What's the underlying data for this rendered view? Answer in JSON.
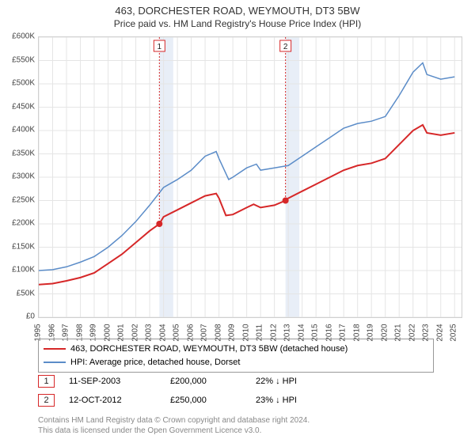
{
  "title": "463, DORCHESTER ROAD, WEYMOUTH, DT3 5BW",
  "subtitle": "Price paid vs. HM Land Registry's House Price Index (HPI)",
  "chart": {
    "type": "line",
    "background_color": "#ffffff",
    "grid_color": "#e5e5e5",
    "shade_color": "#e8eef7",
    "border_color": "#d0d0d0",
    "x_years": [
      1995,
      1996,
      1997,
      1998,
      1999,
      2000,
      2001,
      2002,
      2003,
      2004,
      2005,
      2006,
      2007,
      2008,
      2009,
      2010,
      2011,
      2012,
      2013,
      2014,
      2015,
      2016,
      2017,
      2018,
      2019,
      2020,
      2021,
      2022,
      2023,
      2024,
      2025
    ],
    "xlim": [
      1995,
      2025.5
    ],
    "ylim": [
      0,
      600000
    ],
    "ytick_step": 50000,
    "ytick_labels": [
      "£0",
      "£50K",
      "£100K",
      "£150K",
      "£200K",
      "£250K",
      "£300K",
      "£350K",
      "£400K",
      "£450K",
      "£500K",
      "£550K",
      "£600K"
    ],
    "series": [
      {
        "name": "463, DORCHESTER ROAD, WEYMOUTH, DT3 5BW (detached house)",
        "color": "#d62728",
        "width": 2,
        "points": [
          [
            1995,
            70000
          ],
          [
            1996,
            72000
          ],
          [
            1997,
            78000
          ],
          [
            1998,
            85000
          ],
          [
            1999,
            95000
          ],
          [
            2000,
            115000
          ],
          [
            2001,
            135000
          ],
          [
            2002,
            160000
          ],
          [
            2003,
            185000
          ],
          [
            2003.7,
            200000
          ],
          [
            2004,
            215000
          ],
          [
            2005,
            230000
          ],
          [
            2006,
            245000
          ],
          [
            2007,
            260000
          ],
          [
            2007.8,
            265000
          ],
          [
            2008,
            255000
          ],
          [
            2008.5,
            218000
          ],
          [
            2009,
            220000
          ],
          [
            2010,
            235000
          ],
          [
            2010.5,
            242000
          ],
          [
            2011,
            235000
          ],
          [
            2012,
            240000
          ],
          [
            2012.8,
            250000
          ],
          [
            2013,
            255000
          ],
          [
            2014,
            270000
          ],
          [
            2015,
            285000
          ],
          [
            2016,
            300000
          ],
          [
            2017,
            315000
          ],
          [
            2018,
            325000
          ],
          [
            2019,
            330000
          ],
          [
            2020,
            340000
          ],
          [
            2021,
            370000
          ],
          [
            2022,
            400000
          ],
          [
            2022.7,
            412000
          ],
          [
            2023,
            395000
          ],
          [
            2024,
            390000
          ],
          [
            2025,
            395000
          ]
        ],
        "markers": [
          {
            "x": 2003.7,
            "y": 200000,
            "label": "1"
          },
          {
            "x": 2012.8,
            "y": 250000,
            "label": "2"
          }
        ]
      },
      {
        "name": "HPI: Average price, detached house, Dorset",
        "color": "#5b8cc8",
        "width": 1.5,
        "points": [
          [
            1995,
            100000
          ],
          [
            1996,
            102000
          ],
          [
            1997,
            108000
          ],
          [
            1998,
            118000
          ],
          [
            1999,
            130000
          ],
          [
            2000,
            150000
          ],
          [
            2001,
            175000
          ],
          [
            2002,
            205000
          ],
          [
            2003,
            240000
          ],
          [
            2004,
            278000
          ],
          [
            2005,
            295000
          ],
          [
            2006,
            315000
          ],
          [
            2007,
            345000
          ],
          [
            2007.8,
            355000
          ],
          [
            2008,
            340000
          ],
          [
            2008.7,
            295000
          ],
          [
            2009,
            300000
          ],
          [
            2010,
            320000
          ],
          [
            2010.7,
            328000
          ],
          [
            2011,
            315000
          ],
          [
            2012,
            320000
          ],
          [
            2013,
            325000
          ],
          [
            2014,
            345000
          ],
          [
            2015,
            365000
          ],
          [
            2016,
            385000
          ],
          [
            2017,
            405000
          ],
          [
            2018,
            415000
          ],
          [
            2019,
            420000
          ],
          [
            2020,
            430000
          ],
          [
            2021,
            475000
          ],
          [
            2022,
            525000
          ],
          [
            2022.7,
            545000
          ],
          [
            2023,
            520000
          ],
          [
            2024,
            510000
          ],
          [
            2025,
            515000
          ]
        ]
      }
    ],
    "marker_radius": 4,
    "marker_color": "#d62728",
    "event_line_color": "#d62728",
    "event_line_dash": "2,2",
    "shade_ranges": [
      [
        2003.7,
        2004.7
      ],
      [
        2012.8,
        2013.8
      ]
    ]
  },
  "legend": {
    "rows": [
      {
        "color": "#d62728",
        "label": "463, DORCHESTER ROAD, WEYMOUTH, DT3 5BW (detached house)"
      },
      {
        "color": "#5b8cc8",
        "label": "HPI: Average price, detached house, Dorset"
      }
    ]
  },
  "events": [
    {
      "n": "1",
      "date": "11-SEP-2003",
      "price": "£200,000",
      "delta": "22% ↓ HPI"
    },
    {
      "n": "2",
      "date": "12-OCT-2012",
      "price": "£250,000",
      "delta": "23% ↓ HPI"
    }
  ],
  "footer_line1": "Contains HM Land Registry data © Crown copyright and database right 2024.",
  "footer_line2": "This data is licensed under the Open Government Licence v3.0."
}
